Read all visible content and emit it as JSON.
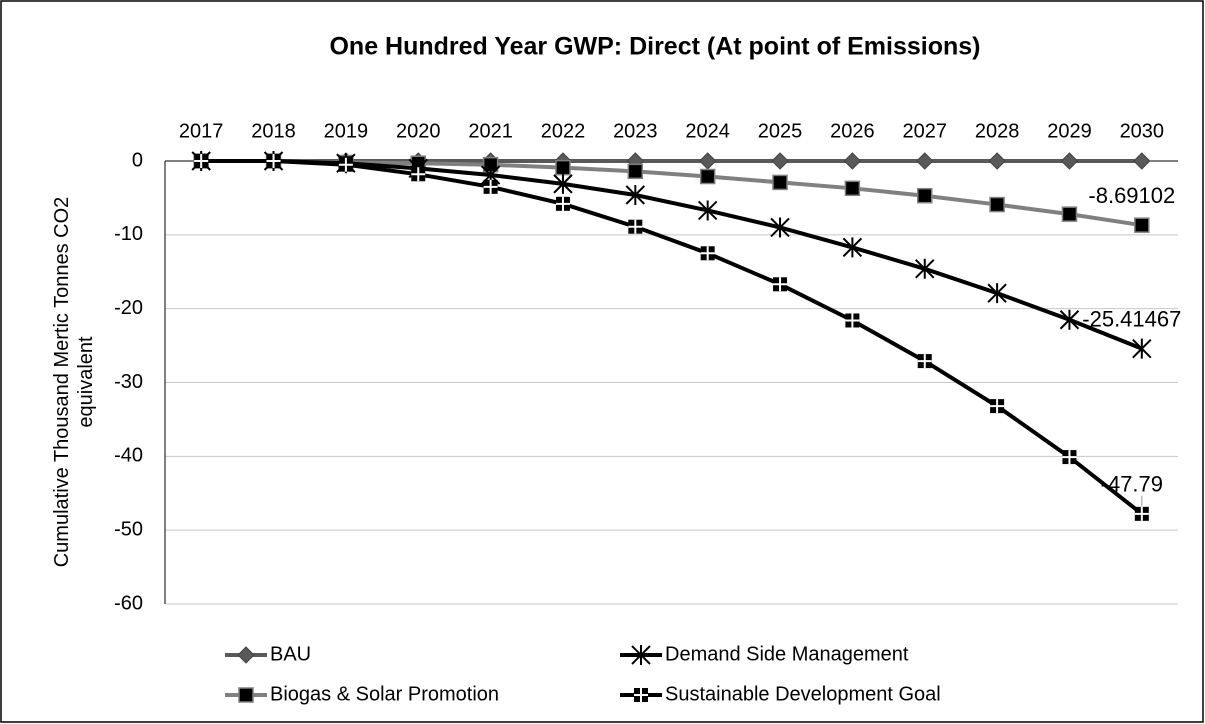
{
  "chart_data": {
    "type": "line",
    "title": "One Hundred Year GWP: Direct (At point of Emissions)",
    "y_label": "Cumulative Thousand Mertic Tonnes CO2 equivalent",
    "categories": [
      "2017",
      "2018",
      "2019",
      "2020",
      "2021",
      "2022",
      "2023",
      "2024",
      "2025",
      "2026",
      "2027",
      "2028",
      "2029",
      "2030"
    ],
    "ylim": [
      -60,
      0
    ],
    "yticks": [
      0,
      -10,
      -20,
      -30,
      -40,
      -50,
      -60
    ],
    "grid": true,
    "legend": "bottom",
    "series": [
      {
        "name": "BAU",
        "color": "#595959",
        "marker": "diamond",
        "values": [
          0,
          0,
          0,
          0,
          0,
          0,
          0,
          0,
          0,
          0,
          0,
          0,
          0,
          0
        ]
      },
      {
        "name": "Demand Side Management",
        "color": "#000000",
        "marker": "asterisk",
        "data_label": "last",
        "values": [
          0,
          0,
          -0.3,
          -1.0,
          -1.9,
          -3.1,
          -4.6,
          -6.7,
          -9.0,
          -11.7,
          -14.6,
          -17.9,
          -21.5,
          -25.41467
        ]
      },
      {
        "name": "Biogas & Solar Promotion",
        "color": "#808080",
        "marker": "square",
        "data_label": "last",
        "values": [
          0,
          0,
          -0.2,
          -0.3,
          -0.5,
          -0.9,
          -1.4,
          -2.1,
          -2.9,
          -3.7,
          -4.7,
          -5.9,
          -7.2,
          -8.69102
        ]
      },
      {
        "name": "Sustainable Development Goal",
        "color": "#000000",
        "marker": "crossed-square",
        "data_label": "last",
        "values": [
          0,
          0,
          -0.5,
          -1.8,
          -3.5,
          -5.8,
          -8.9,
          -12.5,
          -16.7,
          -21.6,
          -27.1,
          -33.2,
          -40.1,
          -47.79
        ]
      }
    ]
  }
}
